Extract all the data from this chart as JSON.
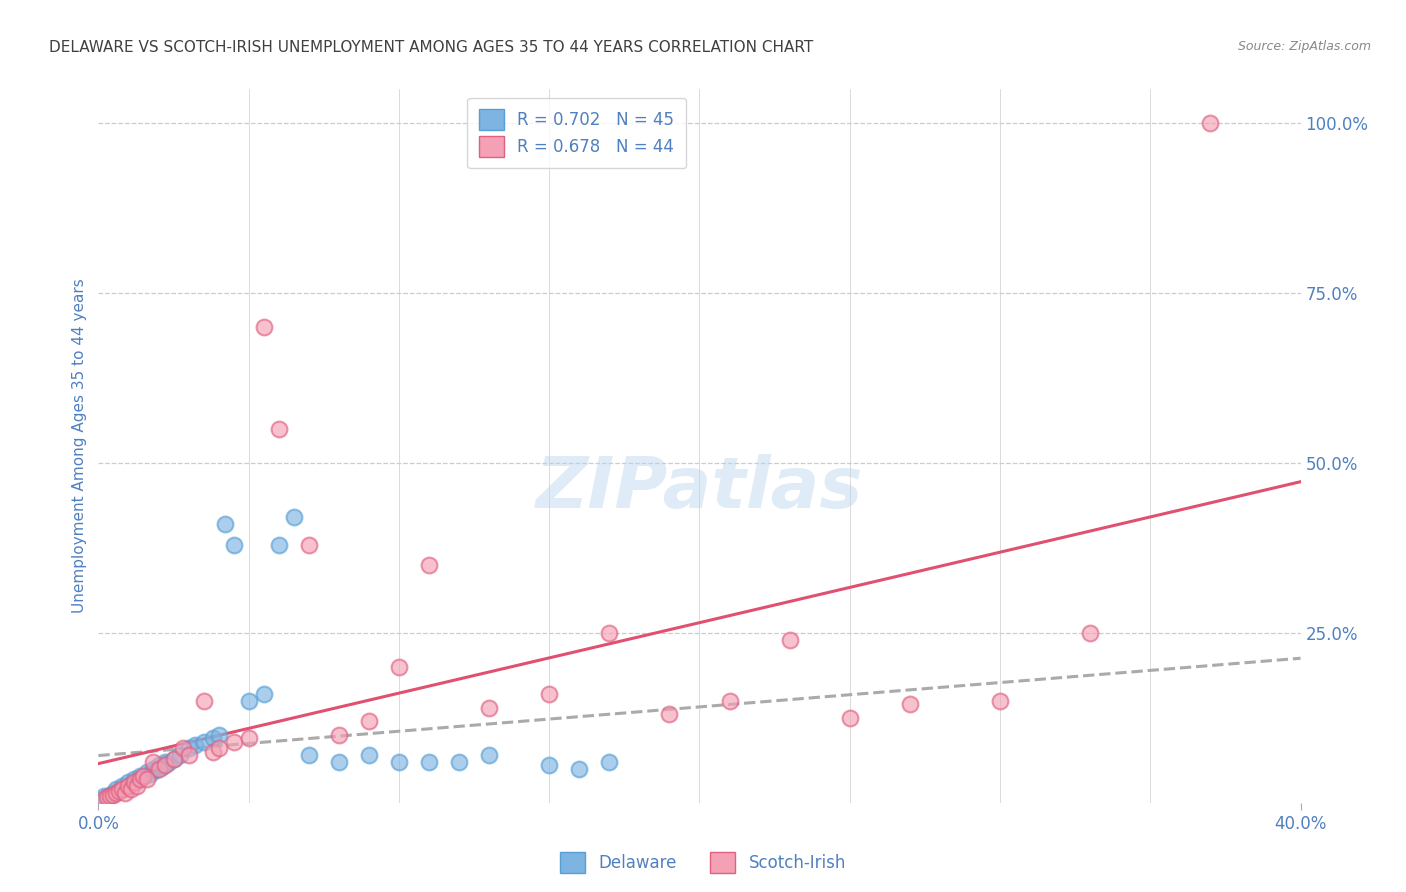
{
  "title": "DELAWARE VS SCOTCH-IRISH UNEMPLOYMENT AMONG AGES 35 TO 44 YEARS CORRELATION CHART",
  "source": "Source: ZipAtlas.com",
  "ylabel": "Unemployment Among Ages 35 to 44 years",
  "xlim": [
    0.0,
    0.4
  ],
  "ylim": [
    0.0,
    1.05
  ],
  "yticks_right": [
    0.25,
    0.5,
    0.75,
    1.0
  ],
  "ytick_right_labels": [
    "25.0%",
    "50.0%",
    "75.0%",
    "100.0%"
  ],
  "grid_color": "#cccccc",
  "background_color": "#ffffff",
  "delaware_color": "#7eb4e2",
  "delaware_edge_color": "#5a9fd4",
  "scotchirish_color": "#f4a0b5",
  "scotchirish_edge_color": "#e06080",
  "delaware_line_color": "#aaaaaa",
  "delaware_line_style": "--",
  "scotchirish_line_color": "#e05070",
  "scotchirish_line_style": "-",
  "delaware_R": 0.702,
  "delaware_N": 45,
  "scotchirish_R": 0.678,
  "scotchirish_N": 44,
  "title_color": "#404040",
  "axis_label_color": "#5080c0",
  "watermark": "ZIPatlas",
  "delaware_x": [
    0.002,
    0.003,
    0.004,
    0.005,
    0.006,
    0.007,
    0.008,
    0.009,
    0.01,
    0.011,
    0.012,
    0.013,
    0.014,
    0.015,
    0.016,
    0.017,
    0.018,
    0.019,
    0.02,
    0.021,
    0.022,
    0.023,
    0.025,
    0.027,
    0.03,
    0.032,
    0.035,
    0.038,
    0.04,
    0.042,
    0.045,
    0.05,
    0.055,
    0.06,
    0.065,
    0.07,
    0.08,
    0.09,
    0.1,
    0.11,
    0.12,
    0.13,
    0.15,
    0.16,
    0.17
  ],
  "delaware_y": [
    0.01,
    0.008,
    0.012,
    0.015,
    0.02,
    0.018,
    0.025,
    0.022,
    0.03,
    0.028,
    0.035,
    0.032,
    0.04,
    0.038,
    0.045,
    0.042,
    0.05,
    0.048,
    0.055,
    0.052,
    0.06,
    0.058,
    0.065,
    0.07,
    0.08,
    0.085,
    0.09,
    0.095,
    0.1,
    0.41,
    0.38,
    0.15,
    0.16,
    0.38,
    0.42,
    0.07,
    0.06,
    0.07,
    0.06,
    0.06,
    0.06,
    0.07,
    0.055,
    0.05,
    0.06
  ],
  "scotchirish_x": [
    0.002,
    0.003,
    0.004,
    0.005,
    0.006,
    0.007,
    0.008,
    0.009,
    0.01,
    0.011,
    0.012,
    0.013,
    0.014,
    0.015,
    0.016,
    0.018,
    0.02,
    0.022,
    0.025,
    0.028,
    0.03,
    0.035,
    0.038,
    0.04,
    0.045,
    0.05,
    0.055,
    0.06,
    0.07,
    0.08,
    0.09,
    0.1,
    0.11,
    0.13,
    0.15,
    0.17,
    0.19,
    0.21,
    0.23,
    0.25,
    0.27,
    0.3,
    0.33,
    0.37
  ],
  "scotchirish_y": [
    0.005,
    0.008,
    0.01,
    0.012,
    0.015,
    0.018,
    0.02,
    0.015,
    0.025,
    0.02,
    0.03,
    0.025,
    0.035,
    0.04,
    0.035,
    0.06,
    0.05,
    0.055,
    0.065,
    0.08,
    0.07,
    0.15,
    0.075,
    0.08,
    0.09,
    0.095,
    0.7,
    0.55,
    0.38,
    0.1,
    0.12,
    0.2,
    0.35,
    0.14,
    0.16,
    0.25,
    0.13,
    0.15,
    0.24,
    0.125,
    0.145,
    0.15,
    0.25,
    1.0
  ]
}
